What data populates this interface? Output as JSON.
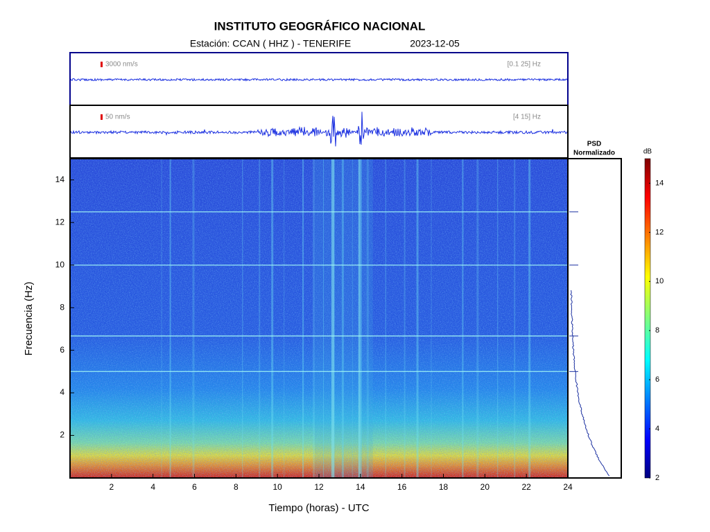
{
  "chart_data": {
    "type": "spectrogram",
    "title": "INSTITUTO GEOGRÁFICO NACIONAL",
    "station": "Estación:  CCAN ( HHZ ) - TENERIFE",
    "date": "2023-12-05",
    "xlabel": "Tiempo (horas) - UTC",
    "ylabel": "Frecuencia  (Hz)",
    "xlim": [
      0,
      24
    ],
    "xticks": [
      2,
      4,
      6,
      8,
      10,
      12,
      14,
      16,
      18,
      20,
      22,
      24
    ],
    "ylim": [
      0,
      15
    ],
    "yticks": [
      2,
      4,
      6,
      8,
      10,
      12,
      14
    ],
    "spectral_lines": [
      5,
      6.67,
      10,
      12.5
    ],
    "traces": [
      {
        "scale": "3000 nm/s",
        "band": "[0.1 25] Hz"
      },
      {
        "scale": "50 nm/s",
        "band": "[4 15] Hz"
      }
    ],
    "psd_title": [
      "PSD",
      "Normalizado"
    ],
    "colorbar": {
      "label": "dB",
      "clim": [
        2,
        15
      ],
      "ticks": [
        2,
        4,
        6,
        8,
        10,
        12,
        14
      ]
    }
  }
}
